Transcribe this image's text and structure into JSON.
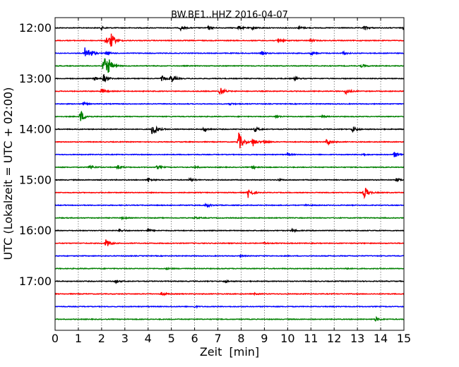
{
  "chart_data": {
    "type": "line",
    "title": "BW.BE1..HHZ 2016-04-07",
    "xlabel": "Zeit  [min]",
    "ylabel": "UTC (Lokalzeit = UTC + 02:00)",
    "xlim": [
      0,
      15
    ],
    "x_ticks": [
      "0",
      "1",
      "2",
      "3",
      "4",
      "5",
      "6",
      "7",
      "8",
      "9",
      "10",
      "11",
      "12",
      "13",
      "14",
      "15"
    ],
    "y_tick_labels": [
      "12:00",
      "13:00",
      "14:00",
      "15:00",
      "16:00",
      "17:00"
    ],
    "grid": "vertical dotted at each minute",
    "trace_colors": [
      "#000000",
      "#ff0000",
      "#0000ff",
      "#008000"
    ],
    "trace_interval_minutes": 15,
    "traces": [
      {
        "start": "12:00",
        "events": [
          [
            2.0,
            0.25
          ],
          [
            5.4,
            0.4
          ],
          [
            6.6,
            0.35
          ],
          [
            7.9,
            0.4
          ],
          [
            8.5,
            0.3
          ],
          [
            10.5,
            0.3
          ],
          [
            13.3,
            0.4
          ],
          [
            15.0,
            0.35
          ]
        ]
      },
      {
        "start": "12:15",
        "events": [
          [
            2.4,
            1.4
          ],
          [
            2.2,
            0.9
          ],
          [
            9.6,
            0.5
          ],
          [
            11.0,
            0.25
          ]
        ]
      },
      {
        "start": "12:30",
        "events": [
          [
            1.3,
            1.3
          ],
          [
            1.5,
            0.7
          ],
          [
            2.2,
            0.45
          ],
          [
            8.9,
            0.3
          ],
          [
            11.0,
            0.35
          ],
          [
            12.4,
            0.3
          ]
        ]
      },
      {
        "start": "12:45",
        "events": [
          [
            2.1,
            2.0
          ],
          [
            2.3,
            1.1
          ],
          [
            13.2,
            0.3
          ]
        ]
      },
      {
        "start": "13:00",
        "events": [
          [
            1.7,
            0.4
          ],
          [
            2.1,
            0.8
          ],
          [
            5.0,
            0.8
          ],
          [
            4.6,
            0.5
          ],
          [
            10.3,
            0.3
          ]
        ]
      },
      {
        "start": "13:15",
        "events": [
          [
            2.0,
            0.5
          ],
          [
            7.1,
            0.9
          ],
          [
            12.5,
            0.7
          ]
        ]
      },
      {
        "start": "13:30",
        "events": [
          [
            1.2,
            0.3
          ],
          [
            7.5,
            0.2
          ]
        ]
      },
      {
        "start": "13:45",
        "events": [
          [
            1.1,
            1.3
          ],
          [
            9.5,
            0.35
          ],
          [
            11.5,
            0.2
          ]
        ]
      },
      {
        "start": "14:00",
        "events": [
          [
            4.2,
            1.7
          ],
          [
            6.4,
            0.45
          ],
          [
            8.6,
            0.5
          ],
          [
            12.8,
            0.6
          ]
        ]
      },
      {
        "start": "14:15",
        "events": [
          [
            7.9,
            2.0
          ],
          [
            8.5,
            0.9
          ],
          [
            11.7,
            0.7
          ],
          [
            9.0,
            0.4
          ]
        ]
      },
      {
        "start": "14:30",
        "events": [
          [
            14.6,
            0.6
          ],
          [
            13.2,
            0.2
          ],
          [
            10.0,
            0.2
          ]
        ]
      },
      {
        "start": "14:45",
        "events": [
          [
            1.5,
            0.45
          ],
          [
            2.7,
            0.45
          ],
          [
            4.4,
            0.4
          ],
          [
            6.0,
            0.3
          ],
          [
            8.5,
            0.3
          ]
        ]
      },
      {
        "start": "15:00",
        "events": [
          [
            4.0,
            0.5
          ],
          [
            5.8,
            0.3
          ],
          [
            9.6,
            0.2
          ],
          [
            14.7,
            0.35
          ]
        ]
      },
      {
        "start": "15:15",
        "events": [
          [
            8.3,
            1.0
          ],
          [
            13.3,
            1.3
          ]
        ]
      },
      {
        "start": "15:30",
        "events": [
          [
            6.5,
            0.4
          ],
          [
            10.8,
            0.2
          ]
        ]
      },
      {
        "start": "15:45",
        "events": [
          [
            2.9,
            0.2
          ],
          [
            6.0,
            0.2
          ]
        ]
      },
      {
        "start": "16:00",
        "events": [
          [
            2.8,
            0.3
          ],
          [
            4.0,
            0.25
          ],
          [
            10.2,
            0.25
          ]
        ]
      },
      {
        "start": "16:15",
        "events": [
          [
            2.2,
            0.9
          ],
          [
            9.0,
            0.2
          ]
        ]
      },
      {
        "start": "16:30",
        "events": [
          [
            8.0,
            0.15
          ]
        ]
      },
      {
        "start": "16:45",
        "events": [
          [
            4.8,
            0.15
          ],
          [
            12.5,
            0.15
          ]
        ]
      },
      {
        "start": "17:00",
        "events": [
          [
            2.6,
            0.35
          ],
          [
            7.3,
            0.25
          ]
        ]
      },
      {
        "start": "17:15",
        "events": [
          [
            4.6,
            0.35
          ],
          [
            8.6,
            0.15
          ]
        ]
      },
      {
        "start": "17:30",
        "events": [
          [
            6.0,
            0.15
          ]
        ]
      },
      {
        "start": "17:45",
        "events": [
          [
            13.8,
            0.4
          ]
        ]
      }
    ]
  }
}
